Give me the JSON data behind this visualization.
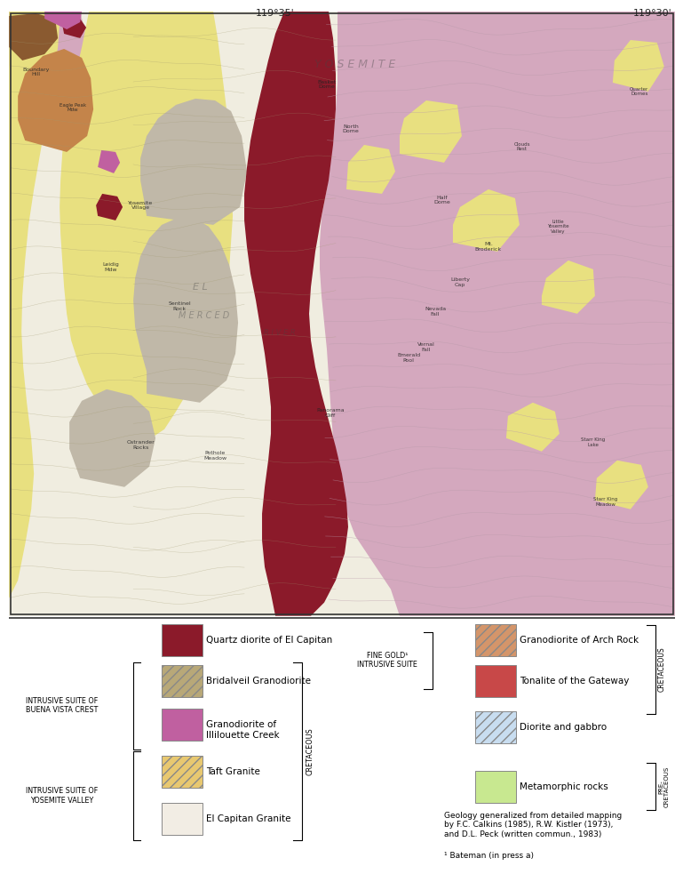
{
  "coord_left": "119°35'",
  "coord_right": "119°30'",
  "colors": {
    "bg_white": "#f2ede4",
    "pink_main": "#d4a8be",
    "yellow": "#e8e080",
    "dark_red": "#8B1A2A",
    "gray_tan": "#c0b8a8",
    "brown_orange": "#c4844a",
    "white_granite": "#f0ede0",
    "purple_pink": "#c49ab8",
    "dark_brown": "#8a6040",
    "magenta": "#c060a0",
    "contour_pink": "#b89aaa",
    "contour_tan": "#a09870"
  },
  "legend": {
    "quartz_diorite": {
      "color": "#8B1A2A",
      "hatch": null,
      "label": "Quartz diorite of El Capitan"
    },
    "bridalveil": {
      "color": "#b8a878",
      "hatch": "///",
      "label": "Bridalveil Granodiorite"
    },
    "illilouette": {
      "color": "#c060a0",
      "hatch": null,
      "label": "Granodiorite of\nIllilouette Creek"
    },
    "taft": {
      "color": "#e8c870",
      "hatch": "///",
      "label": "Taft Granite"
    },
    "el_capitan": {
      "color": "#f2ede4",
      "hatch": null,
      "label": "El Capitan Granite"
    },
    "arch_rock": {
      "color": "#d4956a",
      "hatch": "///",
      "label": "Granodiorite of Arch Rock"
    },
    "gateway": {
      "color": "#c84848",
      "hatch": null,
      "label": "Tonalite of the Gateway"
    },
    "diorite": {
      "color": "#c8ddf0",
      "hatch": "///",
      "label": "Diorite and gabbro"
    },
    "metamorphic": {
      "color": "#c8e890",
      "hatch": null,
      "label": "Metamorphic rocks"
    }
  },
  "citation": "Geology generalized from detailed mapping\nby F.C. Calkins (1985), R.W. Kistler (1973),\nand D.L. Peck (written commun., 1983)",
  "footnote": "¹ Bateman (in press a)"
}
